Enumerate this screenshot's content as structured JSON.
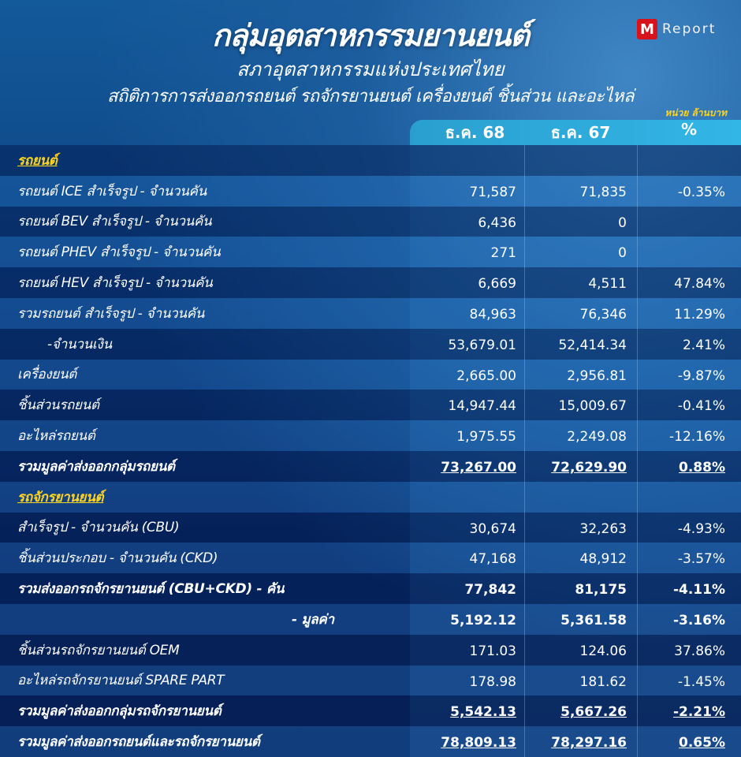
{
  "header": {
    "title": "กลุ่มอุตสาหกรรมยานยนต์",
    "subtitle": "สภาอุตสาหกรรมแห่งประเทศไทย",
    "description": "สถิติการการส่งออกรถยนต์ รถจักรยานยนต์ เครื่องยนต์ ชิ้นส่วน และอะไหล่",
    "unit": "หน่วย ล้านบาท",
    "logo_text": "Report",
    "logo_letter": "M"
  },
  "columns": [
    "ธ.ค. 68",
    "ธ.ค. 67",
    "%"
  ],
  "colors": {
    "accent": "#ffd41e",
    "header_band": "#32b6e6",
    "logo": "#d7141b"
  },
  "rows": [
    {
      "label": "รถยนต์",
      "type": "section",
      "values": [
        "",
        "",
        ""
      ]
    },
    {
      "label": "รถยนต์ ICE สำเร็จรูป - จำนวนคัน",
      "values": [
        "71,587",
        "71,835",
        "-0.35%"
      ]
    },
    {
      "label": "รถยนต์ BEV สำเร็จรูป - จำนวนคัน",
      "values": [
        "6,436",
        "0",
        ""
      ]
    },
    {
      "label": "รถยนต์ PHEV สำเร็จรูป - จำนวนคัน",
      "values": [
        "271",
        "0",
        ""
      ]
    },
    {
      "label": "รถยนต์ HEV สำเร็จรูป - จำนวนคัน",
      "values": [
        "6,669",
        "4,511",
        "47.84%"
      ]
    },
    {
      "label": "รวมรถยนต์  สำเร็จรูป - จำนวนคัน",
      "values": [
        "84,963",
        "76,346",
        "11.29%"
      ]
    },
    {
      "label": "          -จำนวนเงิน",
      "values": [
        "53,679.01",
        "52,414.34",
        "2.41%"
      ]
    },
    {
      "label": "เครื่องยนต์",
      "values": [
        "2,665.00",
        "2,956.81",
        "-9.87%"
      ]
    },
    {
      "label": "ชิ้นส่วนรถยนต์",
      "values": [
        "14,947.44",
        "15,009.67",
        "-0.41%"
      ]
    },
    {
      "label": "อะไหล่รถยนต์",
      "values": [
        "1,975.55",
        "2,249.08",
        "-12.16%"
      ]
    },
    {
      "label": "รวมมูลค่าส่งออกกลุ่มรถยนต์",
      "type": "total",
      "values": [
        "73,267.00",
        "72,629.90",
        "0.88%"
      ]
    },
    {
      "label": "รถจักรยานยนต์",
      "type": "section",
      "values": [
        "",
        "",
        ""
      ]
    },
    {
      "label": "สำเร็จรูป - จำนวนคัน (CBU)",
      "values": [
        "30,674",
        "32,263",
        "-4.93%"
      ]
    },
    {
      "label": "ชิ้นส่วนประกอบ - จำนวนคัน (CKD)",
      "values": [
        "47,168",
        "48,912",
        "-3.57%"
      ]
    },
    {
      "label": "รวมส่งออกรถจักรยานยนต์ (CBU+CKD) - คัน",
      "type": "boldlabel",
      "values": [
        "77,842",
        "81,175",
        "-4.11%"
      ]
    },
    {
      "label": "- มูลค่า",
      "type": "boldlabel-right",
      "values": [
        "5,192.12",
        "5,361.58",
        "-3.16%"
      ]
    },
    {
      "label": "ชิ้นส่วนรถจักรยานยนต์ OEM",
      "values": [
        "171.03",
        "124.06",
        "37.86%"
      ]
    },
    {
      "label": "อะไหล่รถจักรยานยนต์ SPARE PART",
      "values": [
        "178.98",
        "181.62",
        "-1.45%"
      ]
    },
    {
      "label": "รวมมูลค่าส่งออกกลุ่มรถจักรยานยนต์",
      "type": "total",
      "values": [
        "5,542.13",
        "5,667.26",
        "-2.21%"
      ]
    },
    {
      "label": "รวมมูลค่าส่งออกรถยนต์และรถจักรยานยนต์",
      "type": "total",
      "values": [
        "78,809.13",
        "78,297.16",
        "0.65%"
      ]
    }
  ]
}
